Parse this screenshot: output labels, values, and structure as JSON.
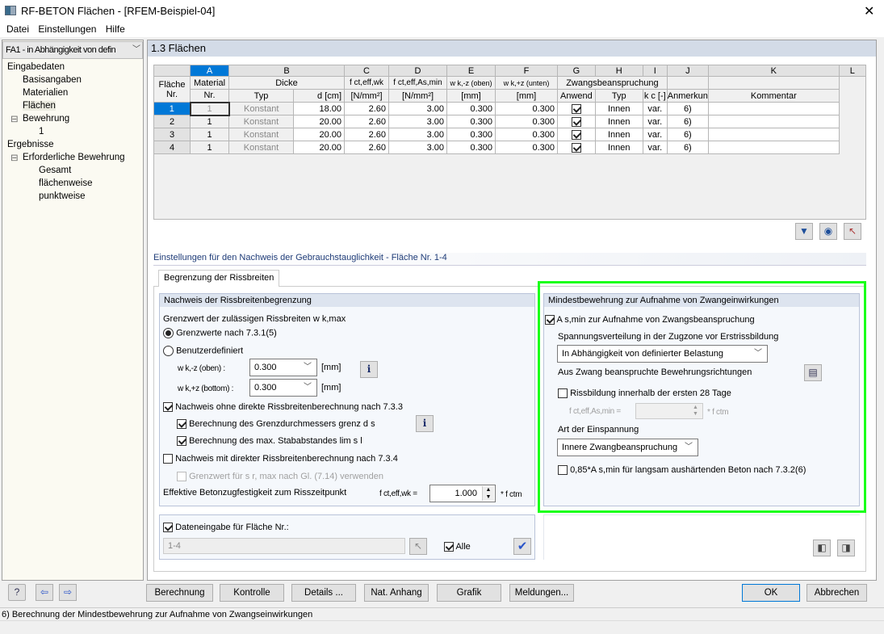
{
  "window": {
    "title": "RF-BETON Flächen - [RFEM-Beispiel-04]",
    "close": "✕"
  },
  "menu": [
    "Datei",
    "Einstellungen",
    "Hilfe"
  ],
  "sidebar": {
    "case_select": "FA1 - in Abhängigkeit von defin",
    "tree": [
      {
        "label": "Eingabedaten",
        "level": 0
      },
      {
        "label": "Basisangaben",
        "level": 1
      },
      {
        "label": "Materialien",
        "level": 1
      },
      {
        "label": "Flächen",
        "level": 1,
        "selected": true
      },
      {
        "label": "Bewehrung",
        "level": 1,
        "expander": "⊟"
      },
      {
        "label": "1",
        "level": 2
      },
      {
        "label": "Ergebnisse",
        "level": 0
      },
      {
        "label": "Erforderliche Bewehrung",
        "level": 1,
        "expander": "⊟"
      },
      {
        "label": "Gesamt",
        "level": 2
      },
      {
        "label": "flächenweise",
        "level": 2
      },
      {
        "label": "punktweise",
        "level": 2
      }
    ]
  },
  "main": {
    "title": "1.3 Flächen"
  },
  "table": {
    "letters": [
      "A",
      "B",
      "C",
      "D",
      "E",
      "F",
      "G",
      "H",
      "I",
      "J",
      "K",
      "L"
    ],
    "rowhdr": [
      "Fläche",
      "Nr."
    ],
    "h1": {
      "material": "Material",
      "dicke": "Dicke",
      "fct_eff_wk": "f ct,eff,wk",
      "fct_eff_asmin": "f ct,eff,As,min",
      "wk_oben": "w k,-z (oben)",
      "wk_unten": "w k,+z (unten)",
      "zwang": "Zwangsbeanspruchung"
    },
    "h2": {
      "nr": "Nr.",
      "typ": "Typ",
      "d": "d [cm]",
      "n1": "[N/mm²]",
      "n2": "[N/mm²]",
      "mm1": "[mm]",
      "mm2": "[mm]",
      "anwend": "Anwend",
      "ztyp": "Typ",
      "kc": "k c [-]",
      "anm": "Anmerkun",
      "komm": "Kommentar"
    },
    "rows": [
      {
        "nr": "1",
        "mat": "1",
        "typ": "Konstant",
        "d": "18.00",
        "fd": "2.60",
        "fe": "3.00",
        "wo": "0.300",
        "wu": "0.300",
        "anwend": true,
        "ztyp": "Innen",
        "kc": "var.",
        "anm": "6)",
        "komm": ""
      },
      {
        "nr": "2",
        "mat": "1",
        "typ": "Konstant",
        "d": "20.00",
        "fd": "2.60",
        "fe": "3.00",
        "wo": "0.300",
        "wu": "0.300",
        "anwend": true,
        "ztyp": "Innen",
        "kc": "var.",
        "anm": "6)",
        "komm": ""
      },
      {
        "nr": "3",
        "mat": "1",
        "typ": "Konstant",
        "d": "20.00",
        "fd": "2.60",
        "fe": "3.00",
        "wo": "0.300",
        "wu": "0.300",
        "anwend": true,
        "ztyp": "Innen",
        "kc": "var.",
        "anm": "6)",
        "komm": ""
      },
      {
        "nr": "4",
        "mat": "1",
        "typ": "Konstant",
        "d": "20.00",
        "fd": "2.60",
        "fe": "3.00",
        "wo": "0.300",
        "wu": "0.300",
        "anwend": true,
        "ztyp": "Innen",
        "kc": "var.",
        "anm": "6)",
        "komm": ""
      }
    ]
  },
  "settings": {
    "title": "Einstellungen für den Nachweis der Gebrauchstauglichkeit - Fläche Nr. 1-4",
    "tab": "Begrenzung der Rissbreiten"
  },
  "left_group": {
    "title": "Nachweis der Rissbreitenbegrenzung",
    "grenzwert_label": "Grenzwert der zulässigen Rissbreiten w k,max",
    "radio1": "Grenzwerte nach 7.3.1(5)",
    "radio2": "Benutzerdefiniert",
    "radio_selected": 1,
    "wk_oben_label": "w k,-z (oben) :",
    "wk_oben_value": "0.300",
    "wk_bottom_label": "w k,+z (bottom) :",
    "wk_bottom_value": "0.300",
    "unit": "[mm]",
    "cb1": {
      "label": "Nachweis ohne direkte Rissbreitenberechnung nach 7.3.3",
      "checked": true
    },
    "cb1a": {
      "label": "Berechnung des Grenzdurchmessers  grenz d s",
      "checked": true
    },
    "cb1b": {
      "label": "Berechnung des max. Stababstandes lim s l",
      "checked": true
    },
    "cb2": {
      "label": "Nachweis mit direkter Rissbreitenberechnung nach 7.3.4",
      "checked": false
    },
    "cb2a": {
      "label": "Grenzwert für s r, max nach Gl. (7.14) verwenden",
      "checked": false
    },
    "eff_label": "Effektive Betonzugfestigkeit zum Risszeitpunkt",
    "eff_sym": "f ct,eff,wk =",
    "eff_value": "1.000",
    "eff_unit": "* f ctm"
  },
  "right_group": {
    "title": "Mindestbewehrung zur Aufnahme von Zwangeinwirkungen",
    "cb_asmin": {
      "label": "A s,min zur Aufnahme von Zwangsbeanspruchung",
      "checked": true
    },
    "spannung_label": "Spannungsverteilung in der Zugzone vor Erstrissbildung",
    "spannung_value": "In Abhängigkeit von definierter Belastung",
    "richtungen_label": "Aus Zwang beanspruchte Bewehrungsrichtungen",
    "cb_28": {
      "label": "Rissbildung innerhalb der ersten 28 Tage",
      "checked": false
    },
    "fct_label": "f ct,eff,As,min =",
    "fct_value": "",
    "fct_unit": "* f ctm",
    "einsp_label": "Art der Einspannung",
    "einsp_value": "Innere Zwangbeanspruchung",
    "cb_085": {
      "label": "0,85*A s,min für langsam aushärtenden Beton nach 7.3.2(6)",
      "checked": false
    }
  },
  "data_input": {
    "label": "Dateneingabe für Fläche Nr.:",
    "checked": true,
    "value": "1-4",
    "alle": "Alle",
    "alle_checked": true
  },
  "buttons": {
    "berechnung": "Berechnung",
    "kontrolle": "Kontrolle",
    "details": "Details ...",
    "nat": "Nat. Anhang",
    "grafik": "Grafik",
    "meldungen": "Meldungen...",
    "ok": "OK",
    "abbrechen": "Abbrechen"
  },
  "status": "6) Berechnung der Mindestbewehrung zur Aufnahme von Zwangseinwirkungen",
  "colors": {
    "highlight": "#0078d7",
    "green_frame": "#1aff1a",
    "group_header": "#dde4ef"
  }
}
